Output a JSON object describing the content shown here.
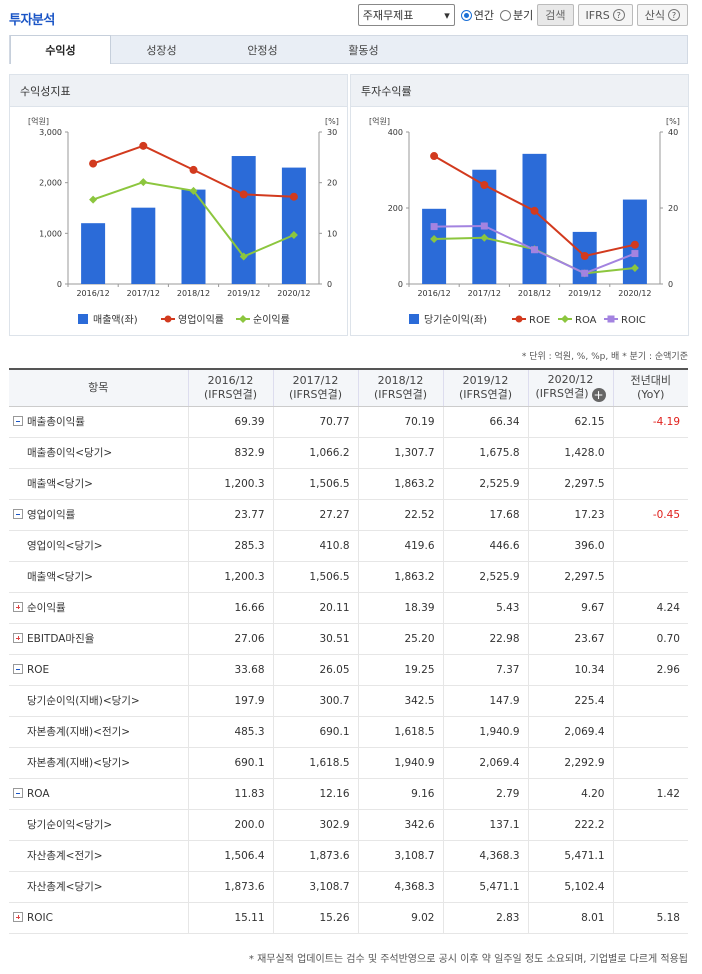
{
  "header": {
    "title": "투자분석",
    "select_value": "주재무제표",
    "radio_annual": "연간",
    "radio_quarter": "분기",
    "search_label": "검색",
    "ifrs_label": "IFRS",
    "formula_label": "산식"
  },
  "tabs": [
    "수익성",
    "성장성",
    "안정성",
    "활동성"
  ],
  "left_panel": {
    "title": "수익성지표"
  },
  "right_panel": {
    "title": "투자수익률"
  },
  "chart_data": [
    {
      "type": "bar",
      "title": "수익성지표",
      "categories": [
        "2016/12",
        "2017/12",
        "2018/12",
        "2019/12",
        "2020/12"
      ],
      "y_left_unit": "[억원]",
      "y_right_unit": "[%]",
      "y_left_ticks": [
        "0",
        "1,000",
        "2,000",
        "3,000"
      ],
      "y_right_ticks": [
        "0",
        "10",
        "20",
        "30"
      ],
      "ylim_left": [
        0,
        3000
      ],
      "ylim_right": [
        0,
        30
      ],
      "series": [
        {
          "name": "매출액(좌)",
          "kind": "bar",
          "axis": "left",
          "color": "#2b6bd8",
          "values": [
            1200.3,
            1506.5,
            1863.2,
            2525.9,
            2297.5
          ]
        },
        {
          "name": "영업이익률",
          "kind": "line",
          "axis": "right",
          "color": "#d23a1e",
          "values": [
            23.77,
            27.27,
            22.52,
            17.68,
            17.23
          ]
        },
        {
          "name": "순이익률",
          "kind": "line",
          "axis": "right",
          "color": "#8cc63e",
          "values": [
            16.66,
            20.11,
            18.39,
            5.43,
            9.67
          ]
        }
      ]
    },
    {
      "type": "bar",
      "title": "투자수익률",
      "categories": [
        "2016/12",
        "2017/12",
        "2018/12",
        "2019/12",
        "2020/12"
      ],
      "y_left_unit": "[억원]",
      "y_right_unit": "[%]",
      "y_left_ticks": [
        "0",
        "200",
        "400"
      ],
      "y_right_ticks": [
        "0",
        "20",
        "40"
      ],
      "ylim_left": [
        0,
        400
      ],
      "ylim_right": [
        0,
        40
      ],
      "series": [
        {
          "name": "당기순이익(좌)",
          "kind": "bar",
          "axis": "left",
          "color": "#2b6bd8",
          "values": [
            197.9,
            300.7,
            342.5,
            137.1,
            222.2
          ]
        },
        {
          "name": "ROE",
          "kind": "line",
          "axis": "right",
          "color": "#d23a1e",
          "values": [
            33.68,
            26.05,
            19.25,
            7.37,
            10.34
          ]
        },
        {
          "name": "ROA",
          "kind": "line",
          "axis": "right",
          "color": "#8cc63e",
          "values": [
            11.83,
            12.16,
            9.16,
            2.79,
            4.2
          ]
        },
        {
          "name": "ROIC",
          "kind": "line",
          "axis": "right",
          "color": "#a383e0",
          "values": [
            15.11,
            15.26,
            9.02,
            2.83,
            8.01
          ]
        }
      ]
    }
  ],
  "note": "* 단위 : 억원, %, %p, 배   * 분기 : 순액기준",
  "table": {
    "headers": [
      "항목",
      "2016/12\n(IFRS연결)",
      "2017/12\n(IFRS연결)",
      "2018/12\n(IFRS연결)",
      "2019/12\n(IFRS연결)",
      "2020/12\n(IFRS연결)",
      "전년대비\n(YoY)"
    ],
    "rows": [
      {
        "label": "매출총이익률",
        "level": 0,
        "toggle": "minus",
        "values": [
          "69.39",
          "70.77",
          "70.19",
          "66.34",
          "62.15",
          "-4.19"
        ]
      },
      {
        "label": "매출총이익<당기>",
        "level": 1,
        "values": [
          "832.9",
          "1,066.2",
          "1,307.7",
          "1,675.8",
          "1,428.0",
          ""
        ]
      },
      {
        "label": "매출액<당기>",
        "level": 1,
        "values": [
          "1,200.3",
          "1,506.5",
          "1,863.2",
          "2,525.9",
          "2,297.5",
          ""
        ]
      },
      {
        "label": "영업이익률",
        "level": 0,
        "toggle": "minus",
        "values": [
          "23.77",
          "27.27",
          "22.52",
          "17.68",
          "17.23",
          "-0.45"
        ]
      },
      {
        "label": "영업이익<당기>",
        "level": 1,
        "values": [
          "285.3",
          "410.8",
          "419.6",
          "446.6",
          "396.0",
          ""
        ]
      },
      {
        "label": "매출액<당기>",
        "level": 1,
        "values": [
          "1,200.3",
          "1,506.5",
          "1,863.2",
          "2,525.9",
          "2,297.5",
          ""
        ]
      },
      {
        "label": "순이익률",
        "level": 0,
        "toggle": "plus",
        "values": [
          "16.66",
          "20.11",
          "18.39",
          "5.43",
          "9.67",
          "4.24"
        ]
      },
      {
        "label": "EBITDA마진율",
        "level": 0,
        "toggle": "plus",
        "values": [
          "27.06",
          "30.51",
          "25.20",
          "22.98",
          "23.67",
          "0.70"
        ]
      },
      {
        "label": "ROE",
        "level": 0,
        "toggle": "minus",
        "values": [
          "33.68",
          "26.05",
          "19.25",
          "7.37",
          "10.34",
          "2.96"
        ]
      },
      {
        "label": "당기순이익(지배)<당기>",
        "level": 1,
        "values": [
          "197.9",
          "300.7",
          "342.5",
          "147.9",
          "225.4",
          ""
        ]
      },
      {
        "label": "자본총계(지배)<전기>",
        "level": 1,
        "values": [
          "485.3",
          "690.1",
          "1,618.5",
          "1,940.9",
          "2,069.4",
          ""
        ]
      },
      {
        "label": "자본총계(지배)<당기>",
        "level": 1,
        "values": [
          "690.1",
          "1,618.5",
          "1,940.9",
          "2,069.4",
          "2,292.9",
          ""
        ]
      },
      {
        "label": "ROA",
        "level": 0,
        "toggle": "minus",
        "values": [
          "11.83",
          "12.16",
          "9.16",
          "2.79",
          "4.20",
          "1.42"
        ]
      },
      {
        "label": "당기순이익<당기>",
        "level": 1,
        "values": [
          "200.0",
          "302.9",
          "342.6",
          "137.1",
          "222.2",
          ""
        ]
      },
      {
        "label": "자산총계<전기>",
        "level": 1,
        "values": [
          "1,506.4",
          "1,873.6",
          "3,108.7",
          "4,368.3",
          "5,471.1",
          ""
        ]
      },
      {
        "label": "자산총계<당기>",
        "level": 1,
        "values": [
          "1,873.6",
          "3,108.7",
          "4,368.3",
          "5,471.1",
          "5,102.4",
          ""
        ]
      },
      {
        "label": "ROIC",
        "level": 0,
        "toggle": "plus",
        "values": [
          "15.11",
          "15.26",
          "9.02",
          "2.83",
          "8.01",
          "5.18"
        ]
      }
    ],
    "neg_color": "#e0201c"
  },
  "footnote": "* 재무실적 업데이트는 검수 및 주석반영으로 공시 이후 약 일주일 정도 소요되며, 기업별로 다르게 적용됩"
}
